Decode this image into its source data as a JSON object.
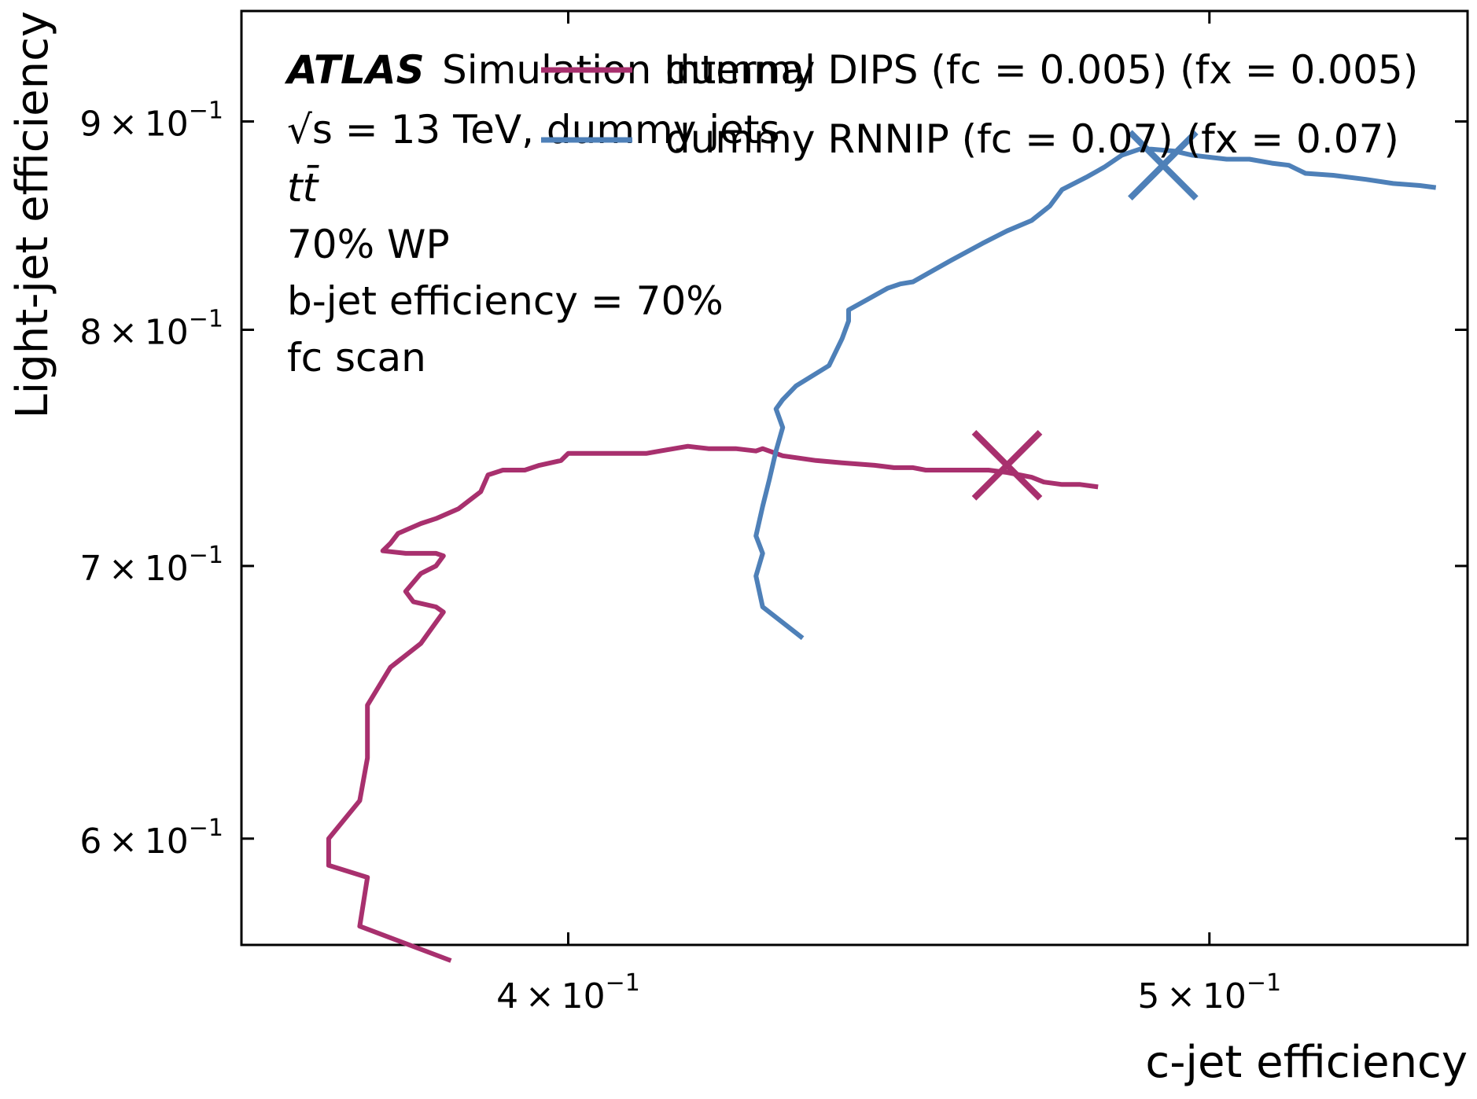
{
  "chart_data": {
    "type": "line",
    "xlabel": "c-jet efficiency",
    "ylabel": "Light-jet efficiency",
    "xscale": "log",
    "yscale": "log",
    "xlim": [
      0.357,
      0.547
    ],
    "ylim": [
      0.565,
      0.958
    ],
    "x_ticks": [
      {
        "value": 0.4,
        "mantissa": "4",
        "base": "10",
        "exponent": "−1"
      },
      {
        "value": 0.5,
        "mantissa": "5",
        "base": "10",
        "exponent": "−1"
      }
    ],
    "y_ticks": [
      {
        "value": 0.6,
        "mantissa": "6",
        "base": "10",
        "exponent": "−1"
      },
      {
        "value": 0.7,
        "mantissa": "7",
        "base": "10",
        "exponent": "−1"
      },
      {
        "value": 0.8,
        "mantissa": "8",
        "base": "10",
        "exponent": "−1"
      },
      {
        "value": 0.9,
        "mantissa": "9",
        "base": "10",
        "exponent": "−1"
      }
    ],
    "annotations": {
      "atlas": "ATLAS",
      "atlas_suffix": "Simulation Internal",
      "energy": "√s = 13 TeV, dummy jets",
      "process": "tt̄",
      "wp": "70% WP",
      "beff": "b-jet efficiency = 70%",
      "scan": "fc scan"
    },
    "legend_position": "top-right",
    "series": [
      {
        "name": "dummy DIPS (fc = 0.005) (fx = 0.005)",
        "color": "#A8306E",
        "marker": {
          "x": 0.466,
          "y": 0.741
        },
        "points": [
          [
            0.384,
            0.56
          ],
          [
            0.372,
            0.571
          ],
          [
            0.373,
            0.587
          ],
          [
            0.368,
            0.591
          ],
          [
            0.368,
            0.6
          ],
          [
            0.372,
            0.613
          ],
          [
            0.373,
            0.628
          ],
          [
            0.373,
            0.647
          ],
          [
            0.376,
            0.661
          ],
          [
            0.38,
            0.67
          ],
          [
            0.382,
            0.678
          ],
          [
            0.383,
            0.682
          ],
          [
            0.382,
            0.684
          ],
          [
            0.379,
            0.686
          ],
          [
            0.378,
            0.69
          ],
          [
            0.38,
            0.697
          ],
          [
            0.382,
            0.7
          ],
          [
            0.383,
            0.704
          ],
          [
            0.382,
            0.705
          ],
          [
            0.378,
            0.705
          ],
          [
            0.375,
            0.706
          ],
          [
            0.376,
            0.709
          ],
          [
            0.377,
            0.713
          ],
          [
            0.38,
            0.717
          ],
          [
            0.382,
            0.719
          ],
          [
            0.385,
            0.723
          ],
          [
            0.388,
            0.73
          ],
          [
            0.389,
            0.737
          ],
          [
            0.391,
            0.739
          ],
          [
            0.394,
            0.739
          ],
          [
            0.396,
            0.741
          ],
          [
            0.399,
            0.743
          ],
          [
            0.4,
            0.746
          ],
          [
            0.404,
            0.746
          ],
          [
            0.407,
            0.746
          ],
          [
            0.411,
            0.746
          ],
          [
            0.413,
            0.747
          ],
          [
            0.417,
            0.749
          ],
          [
            0.42,
            0.748
          ],
          [
            0.424,
            0.748
          ],
          [
            0.427,
            0.747
          ],
          [
            0.428,
            0.748
          ],
          [
            0.431,
            0.745
          ],
          [
            0.436,
            0.743
          ],
          [
            0.44,
            0.742
          ],
          [
            0.445,
            0.741
          ],
          [
            0.448,
            0.74
          ],
          [
            0.451,
            0.74
          ],
          [
            0.453,
            0.739
          ],
          [
            0.456,
            0.739
          ],
          [
            0.46,
            0.739
          ],
          [
            0.463,
            0.739
          ],
          [
            0.466,
            0.738
          ],
          [
            0.47,
            0.736
          ],
          [
            0.472,
            0.734
          ],
          [
            0.475,
            0.733
          ],
          [
            0.478,
            0.733
          ],
          [
            0.481,
            0.732
          ]
        ]
      },
      {
        "name": "dummy RNNIP (fc = 0.07) (fx = 0.07)",
        "color": "#4E80B8",
        "marker": {
          "x": 0.492,
          "y": 0.878
        },
        "points": [
          [
            0.434,
            0.672
          ],
          [
            0.428,
            0.684
          ],
          [
            0.427,
            0.696
          ],
          [
            0.428,
            0.705
          ],
          [
            0.427,
            0.712
          ],
          [
            0.428,
            0.724
          ],
          [
            0.429,
            0.735
          ],
          [
            0.43,
            0.747
          ],
          [
            0.431,
            0.757
          ],
          [
            0.43,
            0.765
          ],
          [
            0.431,
            0.769
          ],
          [
            0.433,
            0.775
          ],
          [
            0.438,
            0.784
          ],
          [
            0.44,
            0.796
          ],
          [
            0.441,
            0.804
          ],
          [
            0.441,
            0.809
          ],
          [
            0.444,
            0.814
          ],
          [
            0.447,
            0.819
          ],
          [
            0.449,
            0.821
          ],
          [
            0.451,
            0.822
          ],
          [
            0.454,
            0.827
          ],
          [
            0.457,
            0.832
          ],
          [
            0.462,
            0.84
          ],
          [
            0.466,
            0.846
          ],
          [
            0.47,
            0.851
          ],
          [
            0.473,
            0.858
          ],
          [
            0.475,
            0.866
          ],
          [
            0.479,
            0.872
          ],
          [
            0.482,
            0.877
          ],
          [
            0.485,
            0.883
          ],
          [
            0.488,
            0.886
          ],
          [
            0.49,
            0.886
          ],
          [
            0.494,
            0.885
          ],
          [
            0.497,
            0.883
          ],
          [
            0.5,
            0.882
          ],
          [
            0.503,
            0.881
          ],
          [
            0.507,
            0.881
          ],
          [
            0.511,
            0.879
          ],
          [
            0.514,
            0.878
          ],
          [
            0.517,
            0.874
          ],
          [
            0.522,
            0.873
          ],
          [
            0.528,
            0.871
          ],
          [
            0.533,
            0.869
          ],
          [
            0.538,
            0.868
          ],
          [
            0.541,
            0.867
          ]
        ]
      }
    ]
  }
}
